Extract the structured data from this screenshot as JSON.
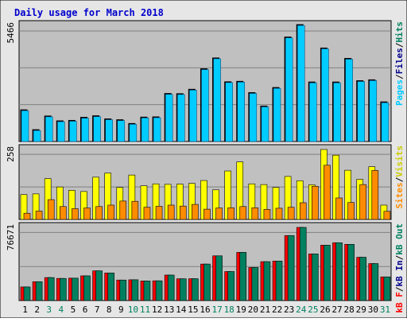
{
  "chart_data": [
    {
      "type": "bar",
      "title": "Daily usage for March 2018",
      "y_max_label": "5466",
      "series": [
        {
          "name": "Pages",
          "color": "#00ccff",
          "values": [
            1400,
            500,
            1120,
            900,
            920,
            1060,
            1130,
            990,
            950,
            780,
            1070,
            1080,
            2140,
            2130,
            2330,
            3260,
            3750,
            2670,
            2690,
            2180,
            1570,
            2410,
            4700,
            5260,
            2660,
            4200,
            2660,
            3730,
            2720,
            2760,
            1760
          ]
        },
        {
          "name": "Files",
          "color": "#00008b",
          "values": [
            1400,
            500,
            1120,
            900,
            920,
            1060,
            1130,
            990,
            950,
            780,
            1070,
            1080,
            2140,
            2130,
            2330,
            3260,
            3750,
            2670,
            2690,
            2180,
            1570,
            2410,
            4700,
            5260,
            2660,
            4200,
            2660,
            3730,
            2720,
            2760,
            1760
          ]
        },
        {
          "name": "Hits",
          "color": "#00805f",
          "values": [
            1400,
            500,
            1120,
            900,
            920,
            1060,
            1130,
            990,
            950,
            780,
            1070,
            1080,
            2140,
            2130,
            2330,
            3260,
            3750,
            2670,
            2690,
            2180,
            1570,
            2410,
            4700,
            5260,
            2660,
            4200,
            2660,
            3730,
            2720,
            2760,
            1760
          ]
        }
      ]
    },
    {
      "type": "bar",
      "y_max_label": "258",
      "series": [
        {
          "name": "Sites",
          "color": "#ff8c00",
          "values": [
            26,
            35,
            83,
            54,
            45,
            48,
            54,
            60,
            77,
            76,
            51,
            55,
            60,
            56,
            63,
            43,
            48,
            49,
            54,
            49,
            42,
            47,
            51,
            70,
            139,
            227,
            90,
            71,
            146,
            205,
            34
          ]
        },
        {
          "name": "Visits",
          "color": "#ffff00",
          "values": [
            104,
            107,
            171,
            136,
            122,
            117,
            177,
            194,
            134,
            186,
            141,
            149,
            147,
            148,
            151,
            163,
            124,
            203,
            241,
            149,
            146,
            134,
            180,
            162,
            145,
            293,
            269,
            206,
            168,
            221,
            60
          ]
        }
      ]
    },
    {
      "type": "bar",
      "y_max_label": "76671",
      "series": [
        {
          "name": "KB F",
          "color": "#ff0000",
          "values": [
            14200,
            19700,
            24000,
            23100,
            23400,
            25800,
            31000,
            28800,
            21400,
            21700,
            20400,
            20600,
            26600,
            22700,
            22800,
            38100,
            46700,
            30300,
            50300,
            34500,
            40600,
            41200,
            67900,
            76400,
            48700,
            57800,
            60400,
            58700,
            45200,
            38600,
            24700
          ]
        },
        {
          "name": "kB In",
          "color": "#00008b",
          "values": [
            14200,
            19700,
            24000,
            23100,
            23400,
            25800,
            31000,
            28800,
            21400,
            21700,
            20400,
            20600,
            26600,
            22700,
            22800,
            38100,
            46700,
            30300,
            50300,
            34500,
            40600,
            41200,
            67900,
            76400,
            48700,
            57800,
            60400,
            58700,
            45200,
            38600,
            24700
          ]
        },
        {
          "name": "kB Out",
          "color": "#00805f",
          "values": [
            14200,
            19700,
            24000,
            23100,
            23400,
            25800,
            31000,
            28800,
            21400,
            21700,
            20400,
            20600,
            26600,
            22700,
            22800,
            38100,
            46700,
            30300,
            50300,
            34500,
            40600,
            41200,
            67900,
            76400,
            48700,
            57800,
            60400,
            58700,
            45200,
            38600,
            24700
          ]
        }
      ],
      "categories": [
        "1",
        "2",
        "3",
        "4",
        "5",
        "6",
        "7",
        "8",
        "9",
        "10",
        "11",
        "12",
        "13",
        "14",
        "15",
        "16",
        "17",
        "18",
        "19",
        "20",
        "21",
        "22",
        "23",
        "24",
        "25",
        "26",
        "27",
        "28",
        "29",
        "30",
        "31"
      ],
      "weekend_days": [
        "3",
        "4",
        "10",
        "11",
        "17",
        "18",
        "24",
        "25",
        "31"
      ]
    }
  ],
  "colors": {
    "title": "#0000cc",
    "weekday_label": "#000000",
    "weekend_label": "#00805f",
    "panel_bg": "#c0c0c0",
    "frame_bg": "#e6e6e6",
    "bar_outline": "#000000",
    "grid": "#808080"
  },
  "legend_panel1": [
    {
      "text": "Pages",
      "color": "#00ccff"
    },
    {
      "text": "/",
      "color": "#000000"
    },
    {
      "text": "Files",
      "color": "#00008b"
    },
    {
      "text": "/",
      "color": "#000000"
    },
    {
      "text": "Hits",
      "color": "#00805f"
    }
  ],
  "legend_panel2": [
    {
      "text": "Sites",
      "color": "#ff8c00"
    },
    {
      "text": "/",
      "color": "#000000"
    },
    {
      "text": "Visits",
      "color": "#cccc00"
    }
  ],
  "legend_panel3": [
    {
      "text": "kB F",
      "color": "#ff0000"
    },
    {
      "text": "/",
      "color": "#000000"
    },
    {
      "text": "kB In",
      "color": "#00008b"
    },
    {
      "text": "/",
      "color": "#000000"
    },
    {
      "text": "kB Out",
      "color": "#00805f"
    }
  ]
}
